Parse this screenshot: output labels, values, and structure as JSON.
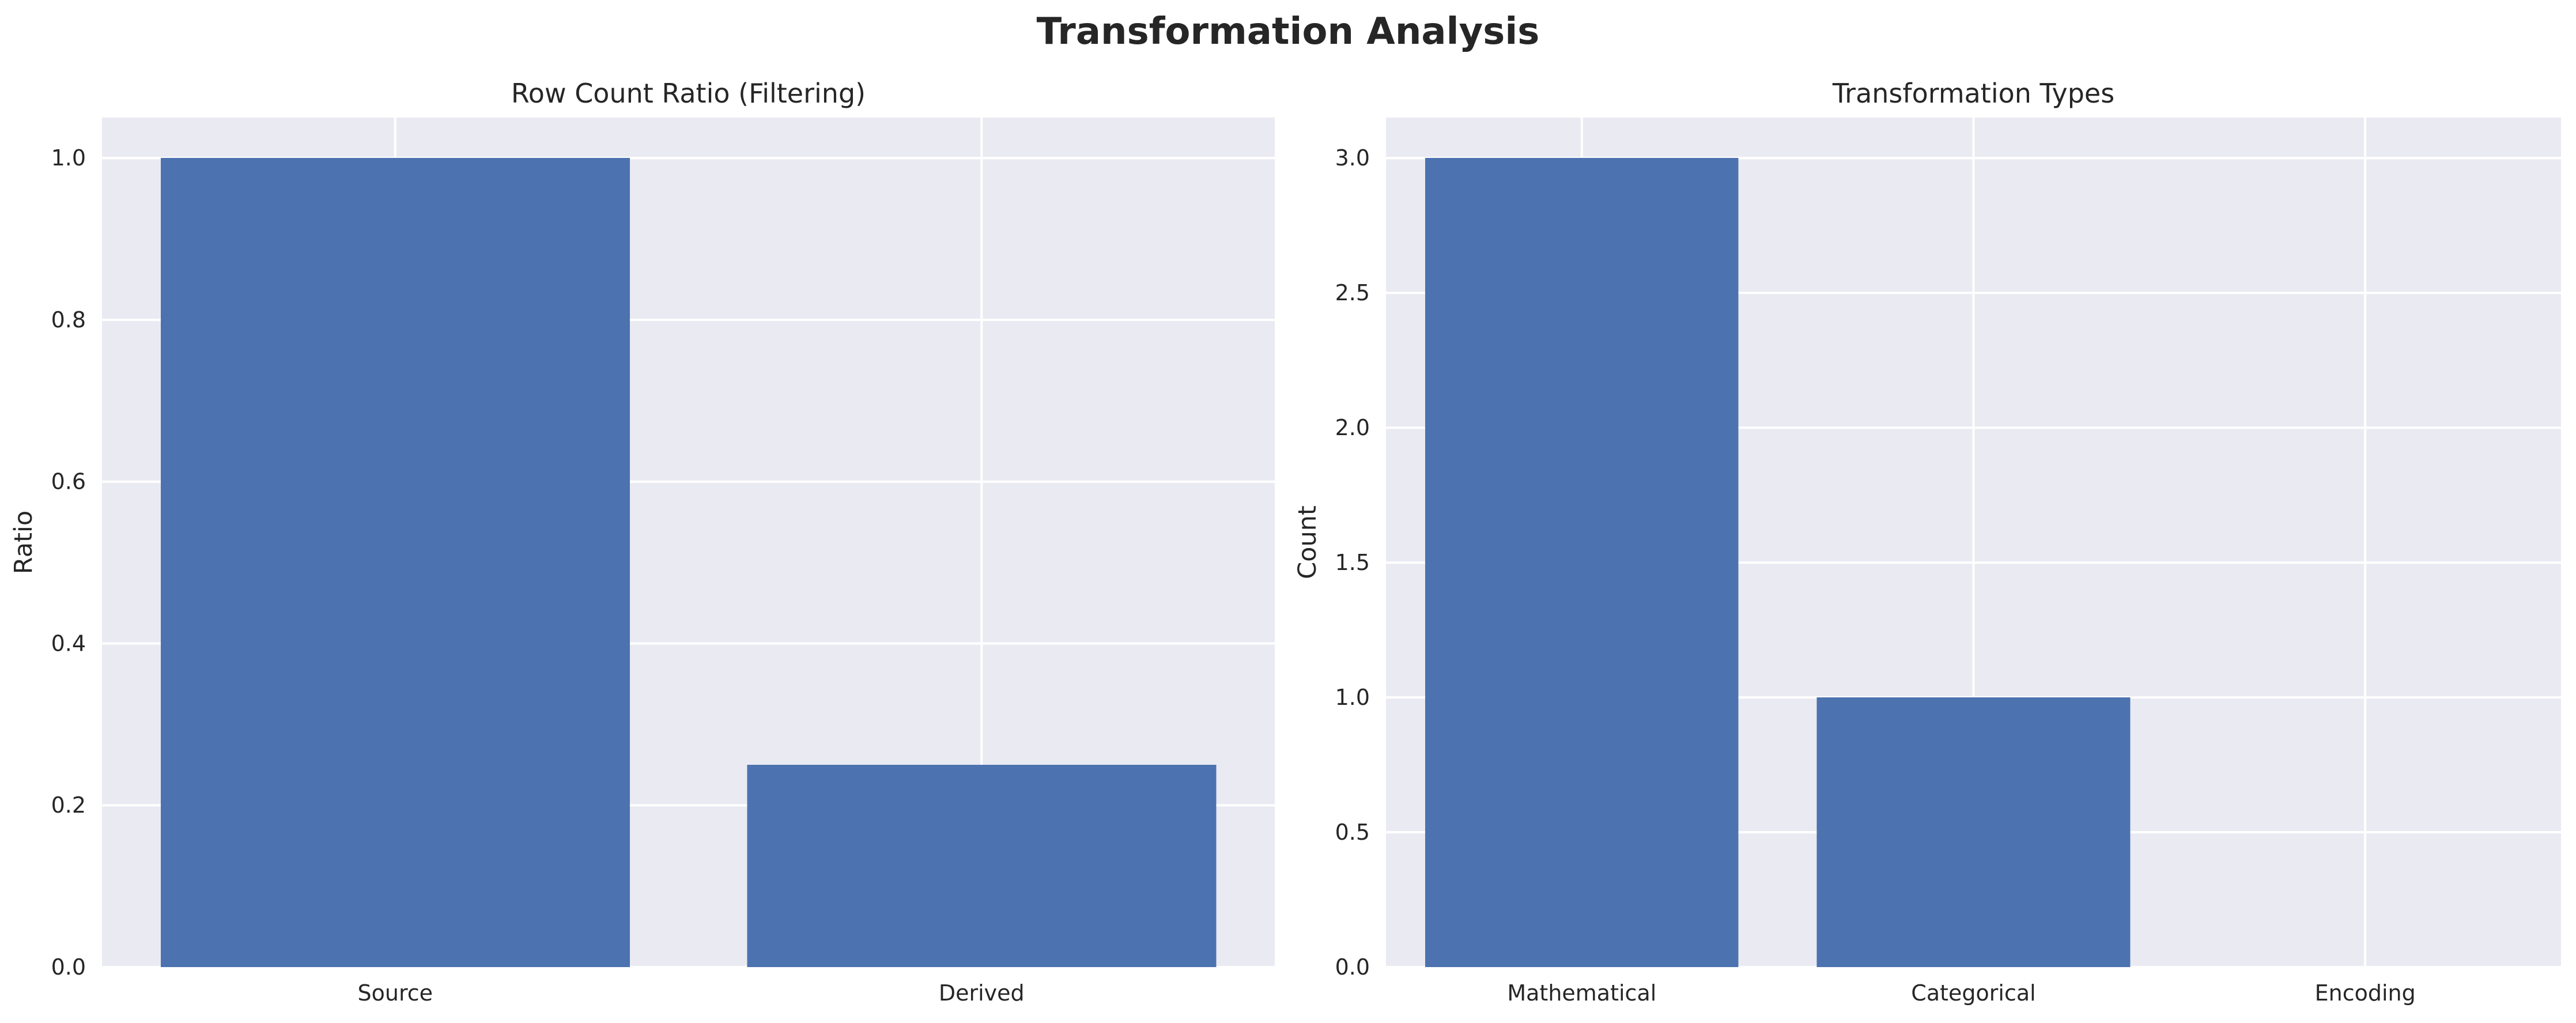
{
  "figure": {
    "title": "Transformation Analysis",
    "bar_color": "#4c72b0",
    "panel_background": "#eaeaf2",
    "grid_color": "#ffffff"
  },
  "chart_data": [
    {
      "type": "bar",
      "title": "Row Count Ratio (Filtering)",
      "xlabel": "",
      "ylabel": "Ratio",
      "categories": [
        "Source",
        "Derived"
      ],
      "values": [
        1.0,
        0.25
      ],
      "ylim": [
        0,
        1.05
      ],
      "yticks": [
        0.0,
        0.2,
        0.4,
        0.6,
        0.8,
        1.0
      ],
      "ytick_labels": [
        "0.0",
        "0.2",
        "0.4",
        "0.6",
        "0.8",
        "1.0"
      ],
      "grid": true
    },
    {
      "type": "bar",
      "title": "Transformation Types",
      "xlabel": "",
      "ylabel": "Count",
      "categories": [
        "Mathematical",
        "Categorical",
        "Encoding"
      ],
      "values": [
        3,
        1,
        0
      ],
      "ylim": [
        0,
        3.15
      ],
      "yticks": [
        0.0,
        0.5,
        1.0,
        1.5,
        2.0,
        2.5,
        3.0
      ],
      "ytick_labels": [
        "0.0",
        "0.5",
        "1.0",
        "1.5",
        "2.0",
        "2.5",
        "3.0"
      ],
      "grid": true
    }
  ]
}
